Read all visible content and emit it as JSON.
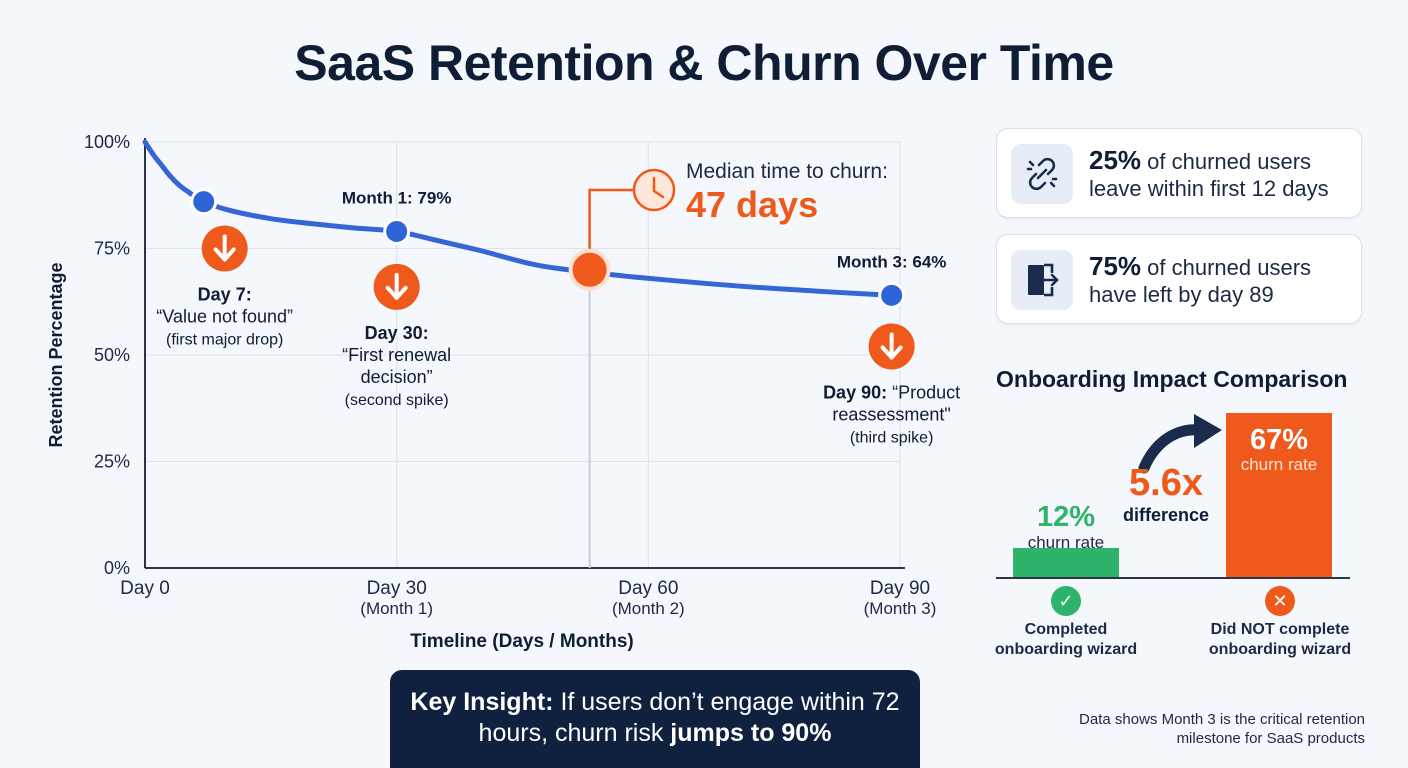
{
  "title": "SaaS Retention & Churn Over Time",
  "colors": {
    "line": "#3466d6",
    "point": "#2f64d8",
    "accent_orange": "#ef5a1c",
    "green": "#2eb36a",
    "navy": "#10213f"
  },
  "chart_data": {
    "type": "line",
    "title": "SaaS Retention & Churn Over Time",
    "xlabel": "Timeline (Days / Months)",
    "ylabel": "Retention Percentage",
    "xlim": [
      0,
      90
    ],
    "ylim": [
      0,
      100
    ],
    "y_ticks": [
      {
        "value": 100,
        "label": "100%"
      },
      {
        "value": 75,
        "label": "75%"
      },
      {
        "value": 50,
        "label": "50%"
      },
      {
        "value": 25,
        "label": "25%"
      },
      {
        "value": 0,
        "label": "0%"
      }
    ],
    "x_ticks": [
      {
        "value": 0,
        "label": "Day 0",
        "sub": ""
      },
      {
        "value": 30,
        "label": "Day 30",
        "sub": "(Month 1)"
      },
      {
        "value": 60,
        "label": "Day 60",
        "sub": "(Month 2)"
      },
      {
        "value": 90,
        "label": "Day 90",
        "sub": "(Month 3)"
      }
    ],
    "grid": true,
    "series": [
      {
        "x": [
          0,
          1,
          2,
          3,
          4,
          5,
          7,
          10,
          15,
          20,
          25,
          30,
          35,
          40,
          47,
          55,
          60,
          70,
          80,
          89
        ],
        "values": [
          100,
          97,
          94.5,
          92,
          90,
          88.5,
          86,
          84,
          82,
          80.8,
          79.8,
          79,
          76.8,
          74.5,
          71,
          69,
          68,
          66.3,
          65,
          64
        ]
      }
    ],
    "points": [
      {
        "x": 7,
        "y": 86,
        "kind": "blue",
        "label": ""
      },
      {
        "x": 30,
        "y": 79,
        "kind": "blue",
        "label": "Month 1: 79%"
      },
      {
        "x": 53,
        "y": 70,
        "kind": "orange",
        "label": ""
      },
      {
        "x": 89,
        "y": 64,
        "kind": "blue",
        "label": "Month 3: 64%"
      }
    ],
    "spikes": [
      {
        "x": 9.5,
        "y": 75,
        "lines": [
          "Day 7:",
          "“Value not found”",
          "(first major drop)"
        ]
      },
      {
        "x": 30,
        "y": 66,
        "lines": [
          "Day 30:",
          "“First renewal",
          "decision”",
          "(second spike)"
        ]
      },
      {
        "x": 89,
        "y": 52,
        "lines": [
          "Day 90: “Product",
          "reassessment\"",
          "(third spike)"
        ]
      }
    ],
    "median_annotation": {
      "label": "Median time to churn:",
      "value": "47 days"
    }
  },
  "stats": [
    {
      "icon": "broken-link-icon",
      "big": "25%",
      "text": " of churned users leave within first 12 days"
    },
    {
      "icon": "exit-door-icon",
      "big": "75%",
      "text": " of churned users have left by day 89"
    }
  ],
  "onboarding": {
    "title": "Onboarding Impact Comparison",
    "completed": {
      "pct": "12%",
      "sub": "churn rate",
      "value": 12,
      "label_line1": "Completed",
      "label_line2": "onboarding wizard"
    },
    "not_completed": {
      "pct": "67%",
      "sub": "churn rate",
      "value": 67,
      "label_line1": "Did NOT complete",
      "label_line2": "onboarding wizard"
    },
    "difference": "5.6x",
    "difference_label": "difference"
  },
  "insight": {
    "lead": "Key Insight:",
    "text": " If users don’t engage within 72 hours, churn risk ",
    "emphasis": "jumps to 90%"
  },
  "footnote": "Data shows Month 3 is the critical retention milestone for SaaS products"
}
